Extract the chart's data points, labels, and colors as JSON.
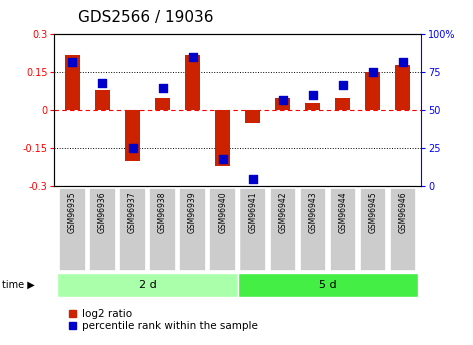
{
  "title": "GDS2566 / 19036",
  "samples": [
    "GSM96935",
    "GSM96936",
    "GSM96937",
    "GSM96938",
    "GSM96939",
    "GSM96940",
    "GSM96941",
    "GSM96942",
    "GSM96943",
    "GSM96944",
    "GSM96945",
    "GSM96946"
  ],
  "log2_ratio": [
    0.22,
    0.08,
    -0.2,
    0.05,
    0.22,
    -0.22,
    -0.05,
    0.05,
    0.03,
    0.05,
    0.15,
    0.18
  ],
  "pct_rank": [
    82,
    68,
    25,
    65,
    85,
    18,
    5,
    57,
    60,
    67,
    75,
    82
  ],
  "groups": [
    {
      "label": "2 d",
      "start": 0,
      "end": 6,
      "color": "#aaffaa"
    },
    {
      "label": "5 d",
      "start": 6,
      "end": 12,
      "color": "#44ee44"
    }
  ],
  "ylim_left": [
    -0.3,
    0.3
  ],
  "ylim_right": [
    0,
    100
  ],
  "yticks_left": [
    -0.3,
    -0.15,
    0.0,
    0.15,
    0.3
  ],
  "yticks_right": [
    0,
    25,
    50,
    75,
    100
  ],
  "ytick_labels_left": [
    "-0.3",
    "-0.15",
    "0",
    "0.15",
    "0.3"
  ],
  "ytick_labels_right": [
    "0",
    "25",
    "50",
    "75",
    "100%"
  ],
  "bar_color": "#cc2200",
  "dot_color": "#0000cc",
  "bar_width": 0.5,
  "dot_size": 30,
  "background_color": "#ffffff",
  "sample_box_color": "#cccccc",
  "label_log2": "log2 ratio",
  "label_pct": "percentile rank within the sample",
  "title_fontsize": 11,
  "tick_fontsize": 7,
  "legend_fontsize": 7.5,
  "group_label_fontsize": 8,
  "sample_fontsize": 5.5
}
